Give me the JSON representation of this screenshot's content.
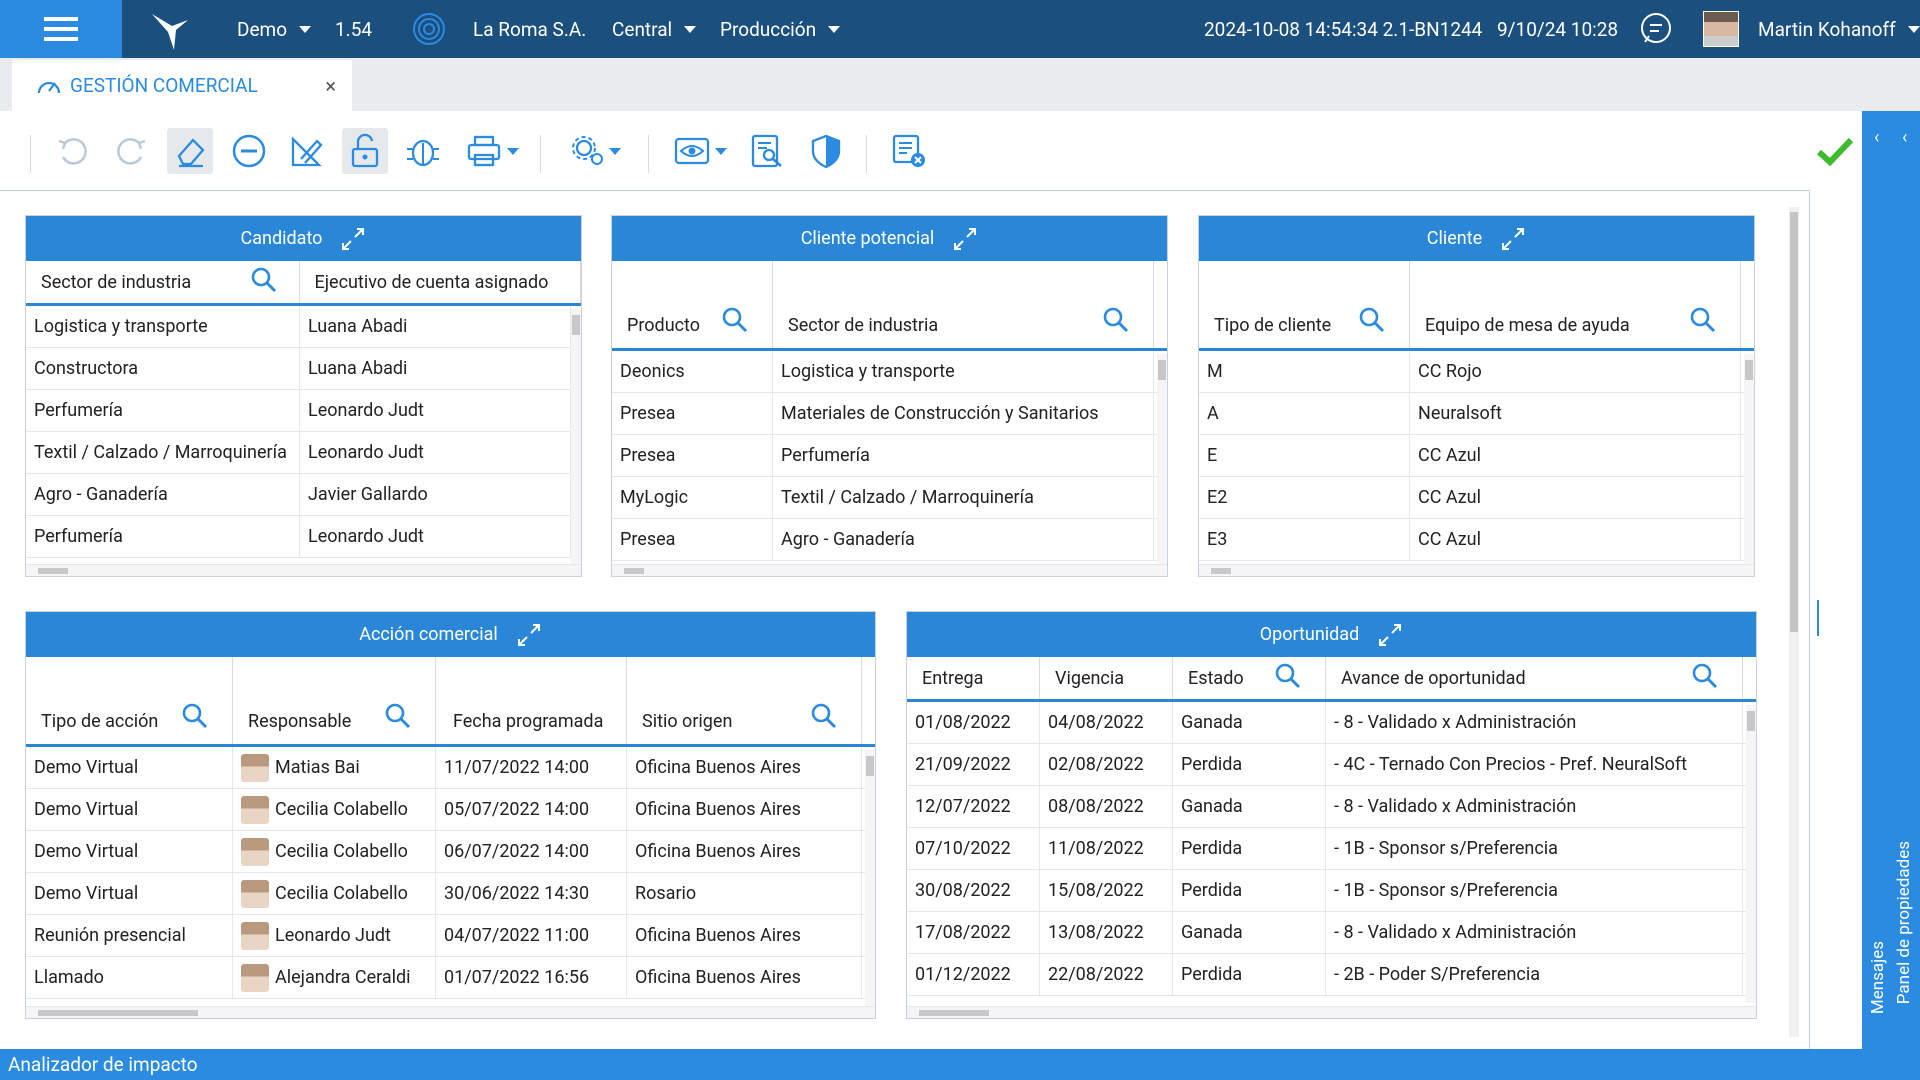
{
  "topbar": {
    "env": "Demo",
    "version": "1.54",
    "company": "La Roma S.A.",
    "branch": "Central",
    "mode": "Producción",
    "build": "2024-10-08 14:54:34 2.1-BN1244",
    "date": "9/10/24 10:28",
    "user": "Martin Kohanoff"
  },
  "tab": {
    "title": "GESTIÓN COMERCIAL",
    "close": "×"
  },
  "candidato": {
    "title": "Candidato",
    "cols": [
      "Sector de industria",
      "Ejecutivo de cuenta asignado"
    ],
    "rows": [
      [
        "Logistica y transporte",
        "Luana Abadi"
      ],
      [
        "Constructora",
        "Luana Abadi"
      ],
      [
        "Perfumería",
        "Leonardo Judt"
      ],
      [
        "Textil / Calzado / Marroquinería",
        "Leonardo Judt"
      ],
      [
        "Agro - Ganadería",
        "Javier Gallardo"
      ],
      [
        "Perfumería",
        "Leonardo Judt"
      ]
    ]
  },
  "potencial": {
    "title": "Cliente potencial",
    "cols": [
      "Producto",
      "Sector de industria"
    ],
    "rows": [
      [
        "Deonics",
        "Logistica y transporte"
      ],
      [
        "Presea",
        "Materiales de Construcción y Sanitarios"
      ],
      [
        "Presea",
        "Perfumería"
      ],
      [
        "MyLogic",
        "Textil / Calzado / Marroquinería"
      ],
      [
        "Presea",
        "Agro - Ganadería"
      ]
    ]
  },
  "cliente": {
    "title": "Cliente",
    "cols": [
      "Tipo de cliente",
      "Equipo de mesa de ayuda"
    ],
    "rows": [
      [
        "M",
        "CC Rojo"
      ],
      [
        "A",
        "Neuralsoft"
      ],
      [
        "E",
        "CC Azul"
      ],
      [
        "E2",
        "CC Azul"
      ],
      [
        "E3",
        "CC Azul"
      ]
    ]
  },
  "accion": {
    "title": "Acción comercial",
    "cols": [
      "Tipo de acción",
      "Responsable",
      "Fecha programada",
      "Sitio origen"
    ],
    "rows": [
      [
        "Demo Virtual",
        "Matias Bai",
        "11/07/2022 14:00",
        "Oficina Buenos Aires"
      ],
      [
        "Demo Virtual",
        "Cecilia Colabello",
        "05/07/2022 14:00",
        "Oficina Buenos Aires"
      ],
      [
        "Demo Virtual",
        "Cecilia Colabello",
        "06/07/2022 14:00",
        "Oficina Buenos Aires"
      ],
      [
        "Demo Virtual",
        "Cecilia Colabello",
        "30/06/2022 14:30",
        "Rosario"
      ],
      [
        "Reunión presencial",
        "Leonardo Judt",
        "04/07/2022 11:00",
        "Oficina Buenos Aires"
      ],
      [
        "Llamado",
        "Alejandra Ceraldi",
        "01/07/2022 16:56",
        "Oficina Buenos Aires"
      ]
    ]
  },
  "oportunidad": {
    "title": "Oportunidad",
    "cols": [
      "Entrega",
      "Vigencia",
      "Estado",
      "Avance de oportunidad"
    ],
    "rows": [
      [
        "01/08/2022",
        "04/08/2022",
        "Ganada",
        "- 8 - Validado x Administración"
      ],
      [
        "21/09/2022",
        "02/08/2022",
        "Perdida",
        "- 4C - Ternado Con Precios - Pref. NeuralSoft"
      ],
      [
        "12/07/2022",
        "08/08/2022",
        "Ganada",
        "- 8 - Validado x Administración"
      ],
      [
        "07/10/2022",
        "11/08/2022",
        "Perdida",
        "- 1B - Sponsor s/Preferencia"
      ],
      [
        "30/08/2022",
        "15/08/2022",
        "Perdida",
        "- 1B - Sponsor s/Preferencia"
      ],
      [
        "17/08/2022",
        "13/08/2022",
        "Ganada",
        "- 8 - Validado x Administración"
      ],
      [
        "01/12/2022",
        "22/08/2022",
        "Perdida",
        "- 2B - Poder S/Preferencia"
      ]
    ]
  },
  "side": {
    "messages": "Mensajes",
    "properties": "Panel de propiedades"
  },
  "status": {
    "text": "Analizador de impacto"
  },
  "colors": {
    "header_bg": "#1b4f7e",
    "accent": "#2a8be0",
    "panel_header": "#2a87d8",
    "ok": "#3fba2f"
  }
}
